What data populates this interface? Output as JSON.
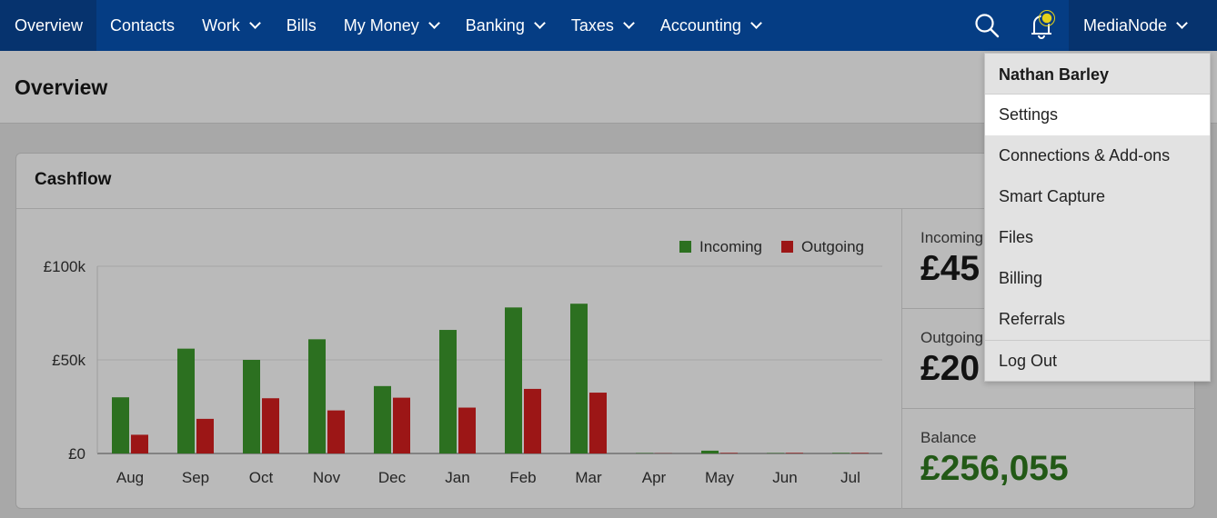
{
  "nav": {
    "items": [
      {
        "label": "Overview",
        "dropdown": false,
        "active": true
      },
      {
        "label": "Contacts",
        "dropdown": false,
        "active": false
      },
      {
        "label": "Work",
        "dropdown": true,
        "active": false
      },
      {
        "label": "Bills",
        "dropdown": false,
        "active": false
      },
      {
        "label": "My Money",
        "dropdown": true,
        "active": false
      },
      {
        "label": "Banking",
        "dropdown": true,
        "active": false
      },
      {
        "label": "Taxes",
        "dropdown": true,
        "active": false
      },
      {
        "label": "Accounting",
        "dropdown": true,
        "active": false
      }
    ],
    "account_label": "MediaNode",
    "search_icon": "search-icon",
    "bell_icon": "bell-icon"
  },
  "page": {
    "title": "Overview"
  },
  "cashflow": {
    "title": "Cashflow",
    "stats": [
      {
        "label": "Incoming",
        "value": "£45"
      },
      {
        "label": "Outgoing",
        "value": "£20"
      },
      {
        "label": "Balance",
        "value": "£256,055"
      }
    ]
  },
  "menu": {
    "user": "Nathan Barley",
    "items": [
      "Settings",
      "Connections & Add-ons",
      "Smart Capture",
      "Files",
      "Billing",
      "Referrals"
    ],
    "logout": "Log Out",
    "highlighted": "Settings"
  },
  "colors": {
    "nav_bg": "#053d84",
    "incoming": "#3d9a2c",
    "outgoing": "#d61f1f",
    "balance": "#2f7a1f"
  },
  "chart_data": {
    "type": "bar",
    "categories": [
      "Aug",
      "Sep",
      "Oct",
      "Nov",
      "Dec",
      "Jan",
      "Feb",
      "Mar",
      "Apr",
      "May",
      "Jun",
      "Jul"
    ],
    "series": [
      {
        "name": "Incoming",
        "values": [
          30000,
          56000,
          50000,
          61000,
          36000,
          66000,
          78000,
          80000,
          200,
          1500,
          200,
          300
        ]
      },
      {
        "name": "Outgoing",
        "values": [
          10000,
          18500,
          29500,
          23000,
          29800,
          24500,
          34500,
          32500,
          100,
          300,
          300,
          300
        ]
      }
    ],
    "yticks": [
      "£0",
      "£50k",
      "£100k"
    ],
    "ylim": [
      0,
      100000
    ],
    "legend": "top-right",
    "grid": true
  }
}
